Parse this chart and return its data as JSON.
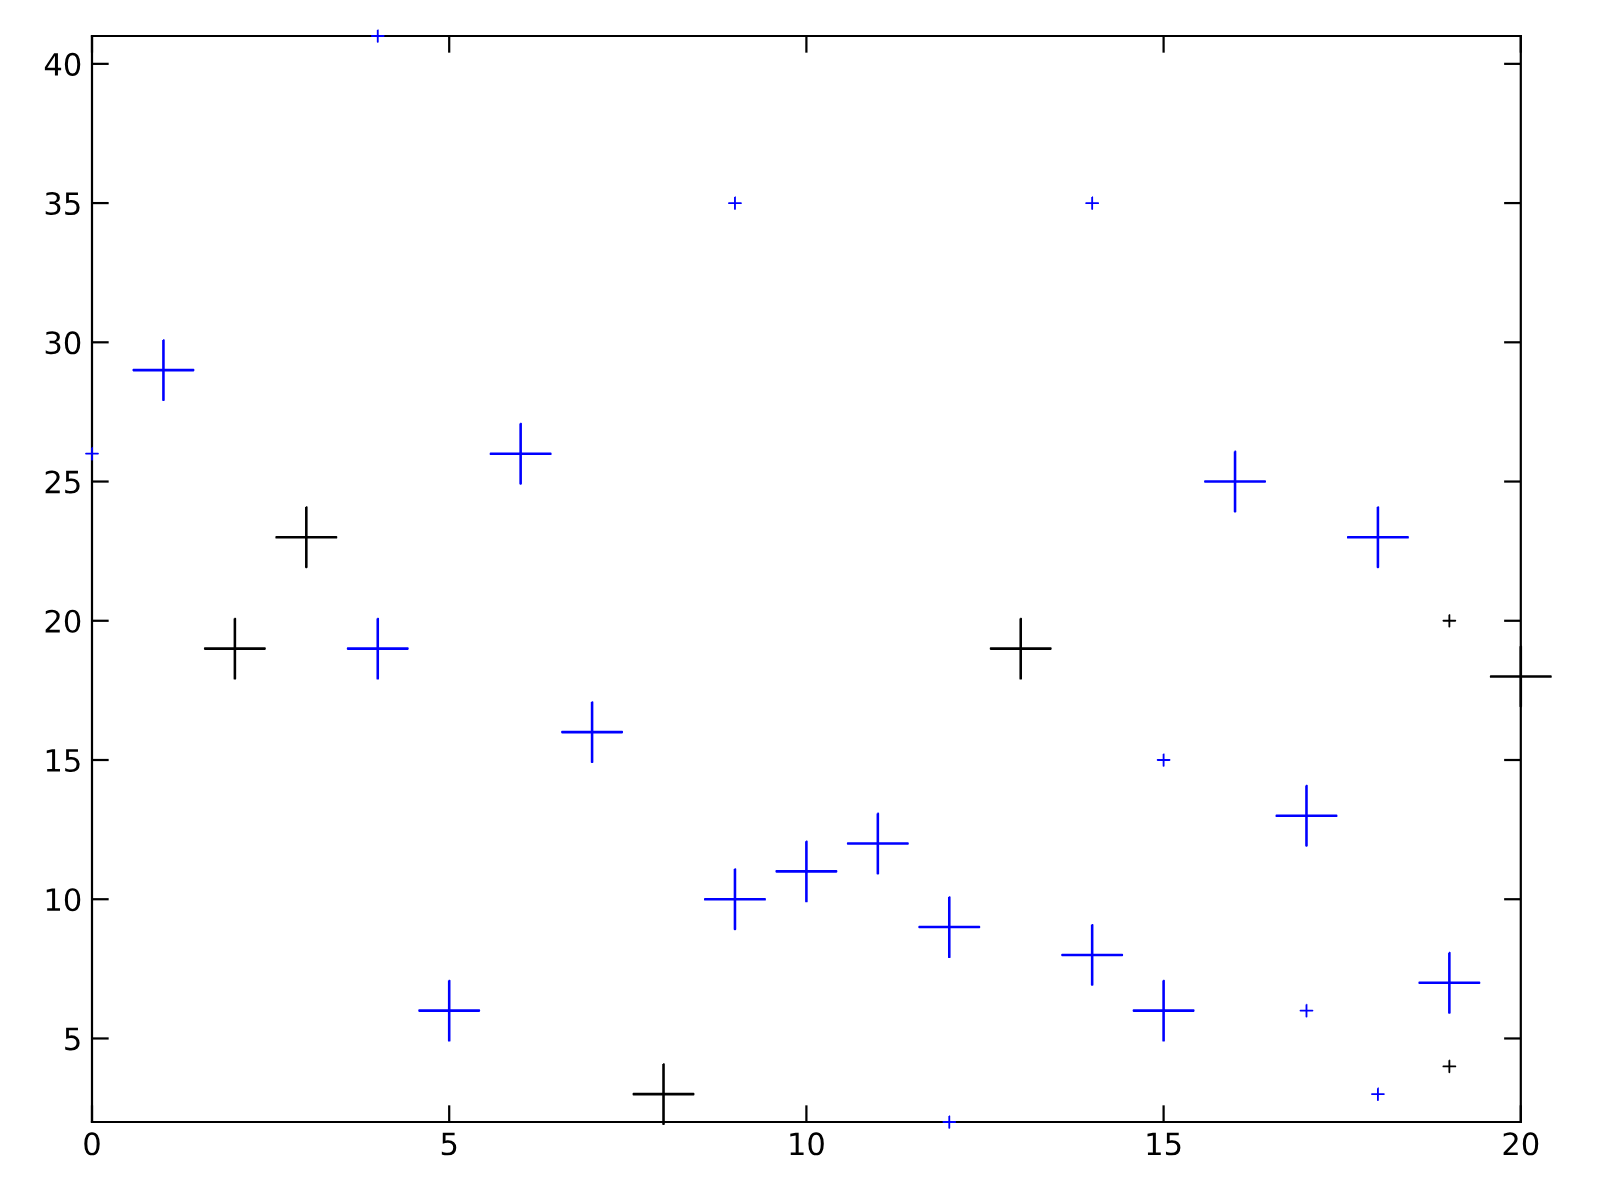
{
  "chart_data": {
    "type": "bubble",
    "marker": "cross",
    "xlim": [
      0,
      20
    ],
    "xticks": [
      0,
      5,
      10,
      15,
      20
    ],
    "ylim": [
      2,
      41
    ],
    "yticks": [
      5,
      10,
      15,
      20,
      25,
      30,
      35,
      40
    ],
    "grid": false,
    "series": [
      {
        "color": "#0000ff",
        "x": [
          1,
          4,
          5,
          6,
          7,
          9,
          10,
          11,
          12,
          14,
          15,
          16,
          17,
          18,
          19,
          0,
          4,
          9,
          14,
          15,
          17,
          18,
          12
        ],
        "values": [
          29,
          19,
          6,
          26,
          16,
          10,
          11,
          12,
          9,
          8,
          6,
          25,
          13,
          23,
          7,
          26,
          41,
          35,
          35,
          15,
          6,
          3,
          2
        ],
        "sizes": [
          1,
          1,
          1,
          1,
          1,
          1,
          1,
          1,
          1,
          1,
          1,
          1,
          1,
          1,
          1,
          0.04,
          0.04,
          0.04,
          0.04,
          0.04,
          0.04,
          0.04,
          0.04
        ]
      },
      {
        "color": "#000000",
        "x": [
          2,
          3,
          8,
          13,
          20,
          19,
          19
        ],
        "values": [
          19,
          23,
          3,
          19,
          18,
          20,
          4
        ],
        "sizes": [
          1,
          1,
          1,
          1,
          1,
          0.04,
          0.04
        ]
      }
    ]
  }
}
